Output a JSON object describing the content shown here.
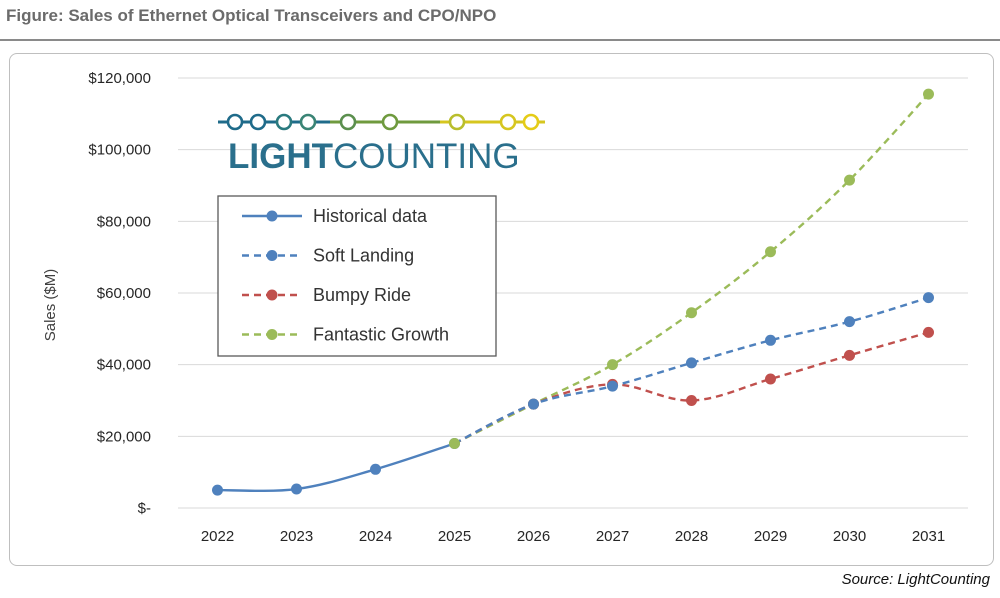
{
  "figure": {
    "title": "Figure: Sales of Ethernet Optical Transceivers and CPO/NPO",
    "source": "Source: LightCounting"
  },
  "logo": {
    "text_bold": "LIGHT",
    "text_regular": "COUNTING",
    "text_color": "#2a6f8c",
    "dot_colors": [
      "#1f6b8a",
      "#1f6b8a",
      "#2a7a7f",
      "#3a8475",
      "#5b8f4e",
      "#6f9a3e",
      "#b9be2c",
      "#d6c61f",
      "#e5cc17"
    ]
  },
  "chart_data": {
    "type": "line",
    "title": "",
    "xlabel": "",
    "ylabel": "Sales ($M)",
    "x": [
      "2022",
      "2023",
      "2024",
      "2025",
      "2026",
      "2027",
      "2028",
      "2029",
      "2030",
      "2031"
    ],
    "ylim": [
      0,
      120000
    ],
    "y_ticks": [
      0,
      20000,
      40000,
      60000,
      80000,
      100000,
      120000
    ],
    "y_tick_labels": [
      "$-",
      "$20,000",
      "$40,000",
      "$60,000",
      "$80,000",
      "$100,000",
      "$120,000"
    ],
    "grid": true,
    "legend_position": "top-left",
    "series": [
      {
        "name": "Historical data",
        "style": "solid",
        "color": "#4f81bd",
        "values": [
          5000,
          5300,
          10800,
          18000,
          null,
          null,
          null,
          null,
          null,
          null
        ]
      },
      {
        "name": "Soft Landing",
        "style": "dashed",
        "color": "#4f81bd",
        "values": [
          null,
          null,
          null,
          18000,
          29000,
          34000,
          40500,
          46800,
          52000,
          58700
        ]
      },
      {
        "name": "Bumpy Ride",
        "style": "dashed",
        "color": "#c0504d",
        "values": [
          null,
          null,
          null,
          18000,
          29000,
          34500,
          30000,
          36000,
          42600,
          49000
        ]
      },
      {
        "name": "Fantastic Growth",
        "style": "dashed",
        "color": "#9bbb59",
        "values": [
          null,
          null,
          null,
          18000,
          29000,
          40000,
          54500,
          71500,
          91500,
          115500
        ]
      }
    ]
  }
}
